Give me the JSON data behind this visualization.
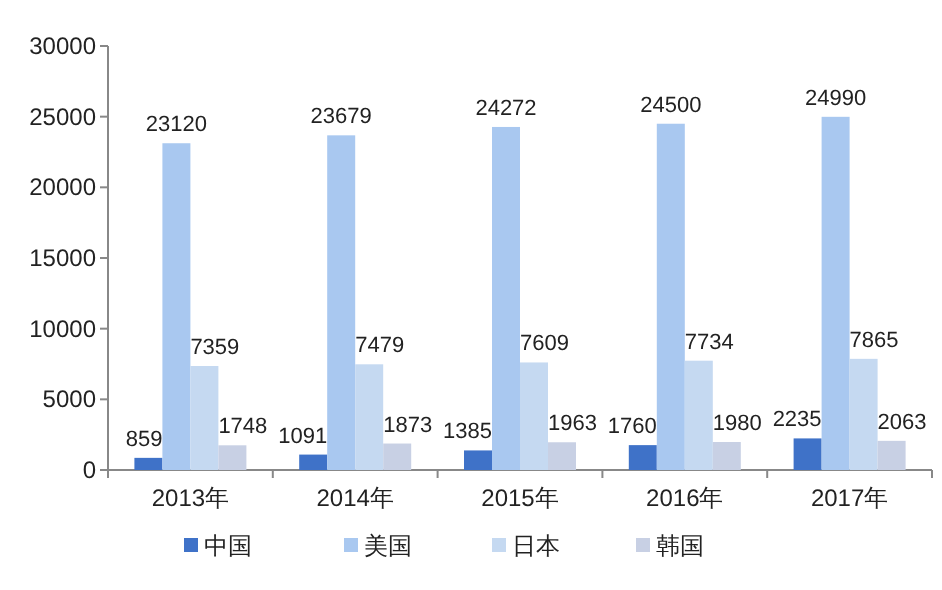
{
  "chart_data": {
    "type": "bar",
    "categories": [
      "2013年",
      "2014年",
      "2015年",
      "2016年",
      "2017年"
    ],
    "series": [
      {
        "name": "中国",
        "color": "#3f72c8",
        "values": [
          859,
          1091,
          1385,
          1760,
          2235
        ]
      },
      {
        "name": "美国",
        "color": "#a9c8f0",
        "values": [
          23120,
          23679,
          24272,
          24500,
          24990
        ]
      },
      {
        "name": "日本",
        "color": "#c5d9f1",
        "values": [
          7359,
          7479,
          7609,
          7734,
          7865
        ]
      },
      {
        "name": "韩国",
        "color": "#c8d0e4",
        "values": [
          1748,
          1873,
          1963,
          1980,
          2063
        ]
      }
    ],
    "ylim": [
      0,
      30000
    ],
    "yticks": [
      0,
      5000,
      10000,
      15000,
      20000,
      25000,
      30000
    ],
    "data_labels": true,
    "grid": false,
    "legend": "bottom"
  }
}
